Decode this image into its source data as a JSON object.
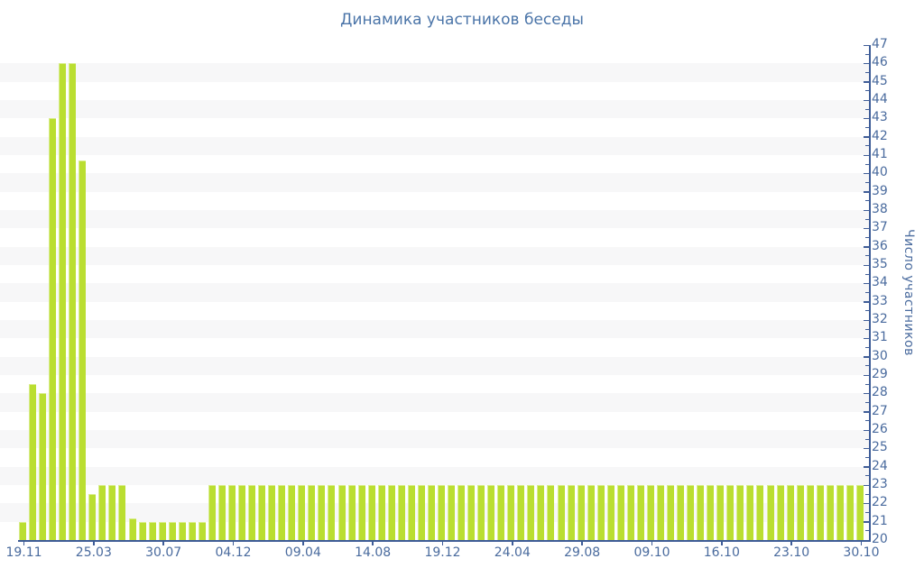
{
  "title": "Динамика участников беседы",
  "chart_data": {
    "type": "bar",
    "title": "Динамика участников беседы",
    "xlabel": "",
    "ylabel": "Число участников",
    "ylim": [
      20,
      47
    ],
    "y_ticks": [
      20,
      21,
      22,
      23,
      24,
      25,
      26,
      27,
      28,
      29,
      30,
      31,
      32,
      33,
      34,
      35,
      36,
      37,
      38,
      39,
      40,
      41,
      42,
      43,
      44,
      45,
      46,
      47
    ],
    "y_minor_tick_step": 0.5,
    "grid": "horizontal-stripes",
    "legend_position": "none",
    "x_tick_labels": [
      "19.11",
      "25.03",
      "30.07",
      "04.12",
      "09.04",
      "14.08",
      "19.12",
      "24.04",
      "29.08",
      "09.10",
      "16.10",
      "23.10",
      "30.10"
    ],
    "x_label_every_n_bars": 7,
    "values": [
      21,
      28.5,
      28,
      43,
      46,
      46,
      40.7,
      22.5,
      23,
      23,
      23,
      21.2,
      21,
      21,
      21,
      21,
      21,
      21,
      21,
      23,
      23,
      23,
      23,
      23,
      23,
      23,
      23,
      23,
      23,
      23,
      23,
      23,
      23,
      23,
      23,
      23,
      23,
      23,
      23,
      23,
      23,
      23,
      23,
      23,
      23,
      23,
      23,
      23,
      23,
      23,
      23,
      23,
      23,
      23,
      23,
      23,
      23,
      23,
      23,
      23,
      23,
      23,
      23,
      23,
      23,
      23,
      23,
      23,
      23,
      23,
      23,
      23,
      23,
      23,
      23,
      23,
      23,
      23,
      23,
      23,
      23,
      23,
      23,
      23,
      23
    ],
    "colors": {
      "bar": "#bade31",
      "bar_highlight": "rgba(255,255,255,0.45)",
      "stripe": "#f7f7f8",
      "axis_line": "#3e5c97",
      "tick_text": "#4a6b9e",
      "title_text": "#4a74a8"
    }
  }
}
